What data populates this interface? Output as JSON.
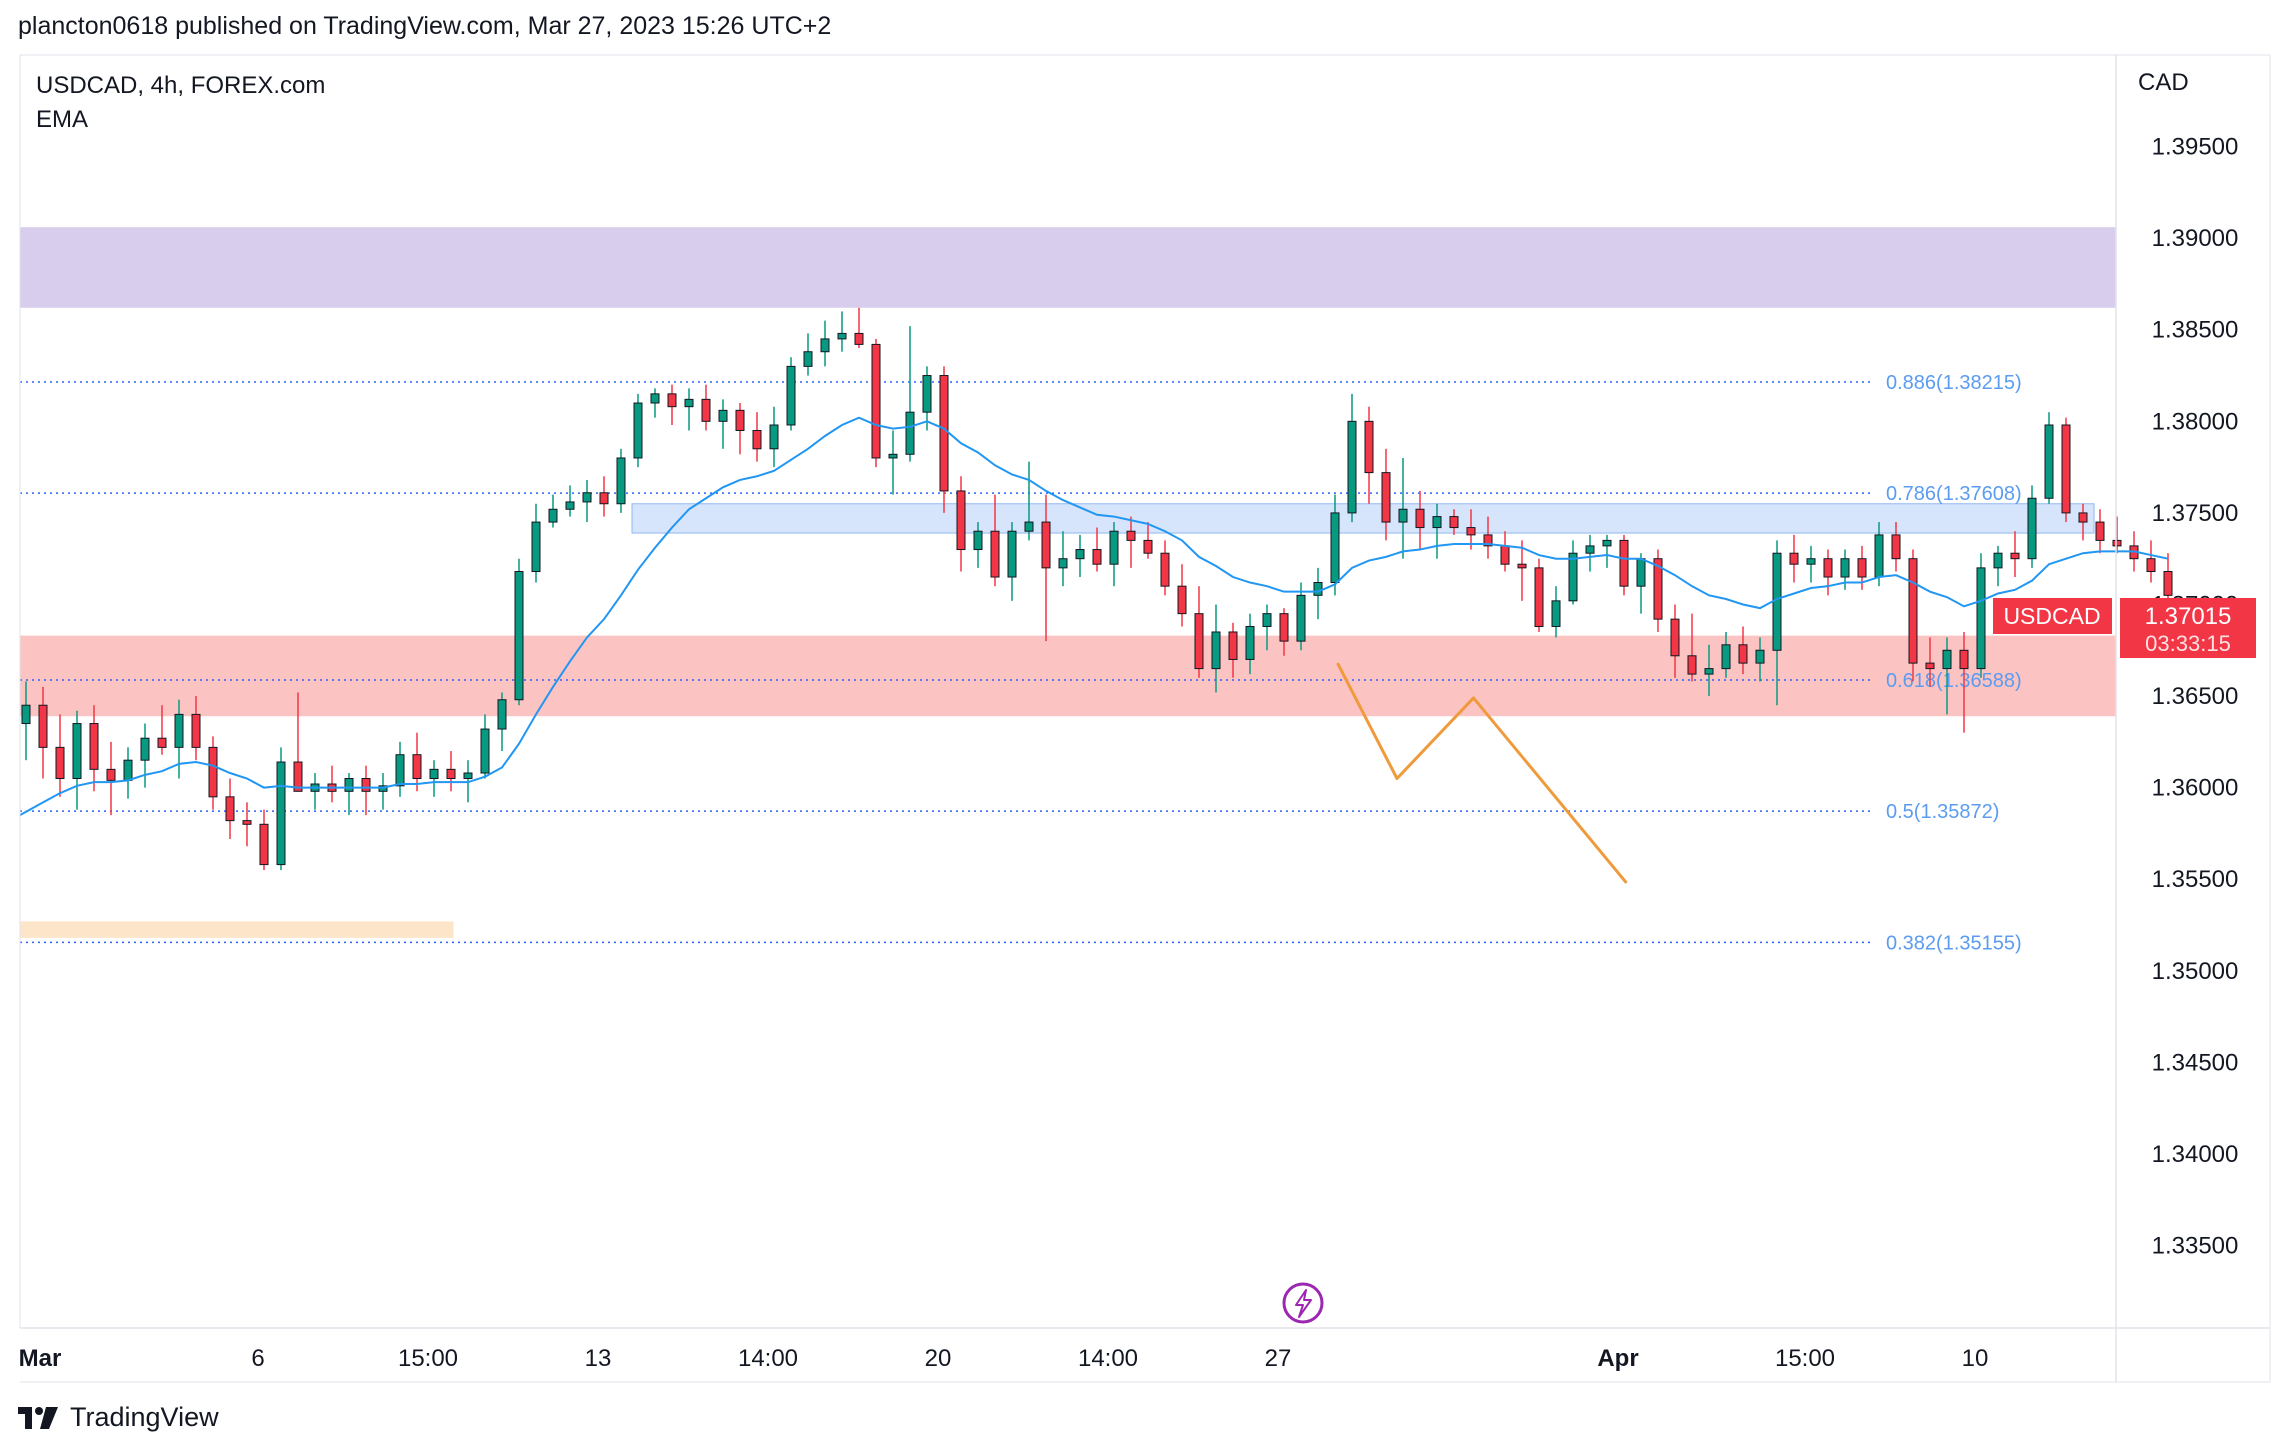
{
  "header": {
    "published": "plancton0618 published on TradingView.com, Mar 27, 2023 15:26 UTC+2"
  },
  "footer": {
    "brand": "TradingView"
  },
  "chart_data": {
    "type": "candlestick",
    "symbol_line": "USDCAD, 4h, FOREX.com",
    "indicator": "EMA",
    "currency": "CAD",
    "ylim": [
      1.3305,
      1.4
    ],
    "y_ticks": [
      "1.39500",
      "1.39000",
      "1.38500",
      "1.38000",
      "1.37500",
      "1.37000",
      "1.36500",
      "1.36000",
      "1.35500",
      "1.35000",
      "1.34500",
      "1.34000",
      "1.33500"
    ],
    "y_tick_values": [
      1.395,
      1.39,
      1.385,
      1.38,
      1.375,
      1.37,
      1.365,
      1.36,
      1.355,
      1.35,
      1.345,
      1.34,
      1.335
    ],
    "x_slots": 128,
    "x_ticks": [
      {
        "label": "Mar",
        "slot": 0,
        "bold": true
      },
      {
        "label": "6",
        "slot": 14,
        "bold": false
      },
      {
        "label": "15:00",
        "slot": 24,
        "bold": false
      },
      {
        "label": "13",
        "slot": 34,
        "bold": false
      },
      {
        "label": "14:00",
        "slot": 44,
        "bold": false
      },
      {
        "label": "20",
        "slot": 54,
        "bold": false
      },
      {
        "label": "14:00",
        "slot": 64,
        "bold": false
      },
      {
        "label": "27",
        "slot": 74,
        "bold": false
      },
      {
        "label": "Apr",
        "slot": 94,
        "bold": true
      },
      {
        "label": "15:00",
        "slot": 105,
        "bold": false
      },
      {
        "label": "10",
        "slot": 115,
        "bold": false
      }
    ],
    "current_price": {
      "label": "USDCAD",
      "value": "1.37015",
      "countdown": "03:33:15",
      "price": 1.37015
    },
    "zones": [
      {
        "name": "supply-zone",
        "y_top": 1.3906,
        "y_bottom": 1.3862,
        "slot_start": 0,
        "slot_end": 128,
        "color": "#d1c4e9"
      },
      {
        "name": "resistance-zone",
        "y_top": 1.3755,
        "y_bottom": 1.3739,
        "slot_start": 36,
        "slot_end": 122,
        "color": "#cfe0fa"
      },
      {
        "name": "demand-zone",
        "y_top": 1.3683,
        "y_bottom": 1.3639,
        "slot_start": 0,
        "slot_end": 128,
        "color": "#fcb9b9"
      },
      {
        "name": "target-zone",
        "y_top": 1.3527,
        "y_bottom": 1.3518,
        "slot_start": 0,
        "slot_end": 25.5,
        "color": "#fde0c0"
      }
    ],
    "fib_levels": [
      {
        "label": "0.886(1.38215)",
        "price": 1.38215
      },
      {
        "label": "0.786(1.37608)",
        "price": 1.37608
      },
      {
        "label": "0.618(1.36588)",
        "price": 1.36588
      },
      {
        "label": "0.5(1.35872)",
        "price": 1.35872
      },
      {
        "label": "0.382(1.35155)",
        "price": 1.35155
      }
    ],
    "projection_path": [
      [
        77.5,
        1.3668
      ],
      [
        81,
        1.3605
      ],
      [
        85.5,
        1.3649
      ],
      [
        94.5,
        1.3548
      ]
    ],
    "candles": [
      [
        1.3635,
        1.3658,
        1.3615,
        1.3645
      ],
      [
        1.3645,
        1.3655,
        1.3605,
        1.3622
      ],
      [
        1.3622,
        1.364,
        1.3595,
        1.3605
      ],
      [
        1.3605,
        1.3642,
        1.3588,
        1.3635
      ],
      [
        1.3635,
        1.3645,
        1.3598,
        1.361
      ],
      [
        1.361,
        1.3625,
        1.3585,
        1.3604
      ],
      [
        1.3604,
        1.3622,
        1.3594,
        1.3615
      ],
      [
        1.3615,
        1.3635,
        1.36,
        1.3627
      ],
      [
        1.3627,
        1.3645,
        1.3618,
        1.3622
      ],
      [
        1.3622,
        1.3648,
        1.3605,
        1.364
      ],
      [
        1.364,
        1.365,
        1.3615,
        1.3622
      ],
      [
        1.3622,
        1.3628,
        1.3588,
        1.3595
      ],
      [
        1.3595,
        1.3605,
        1.3572,
        1.3582
      ],
      [
        1.3582,
        1.3592,
        1.3568,
        1.358
      ],
      [
        1.358,
        1.3588,
        1.3555,
        1.3558
      ],
      [
        1.3558,
        1.3622,
        1.3555,
        1.3614
      ],
      [
        1.3614,
        1.3652,
        1.36,
        1.3598
      ],
      [
        1.3598,
        1.3608,
        1.3588,
        1.3602
      ],
      [
        1.3602,
        1.3612,
        1.3592,
        1.3598
      ],
      [
        1.3598,
        1.3608,
        1.3585,
        1.3605
      ],
      [
        1.3605,
        1.3612,
        1.3585,
        1.3598
      ],
      [
        1.3598,
        1.3608,
        1.3588,
        1.3601
      ],
      [
        1.3601,
        1.3625,
        1.3595,
        1.3618
      ],
      [
        1.3618,
        1.363,
        1.3598,
        1.3605
      ],
      [
        1.3605,
        1.3615,
        1.3595,
        1.361
      ],
      [
        1.361,
        1.362,
        1.3598,
        1.3605
      ],
      [
        1.3605,
        1.3615,
        1.3592,
        1.3608
      ],
      [
        1.3608,
        1.364,
        1.3605,
        1.3632
      ],
      [
        1.3632,
        1.3652,
        1.362,
        1.3648
      ],
      [
        1.3648,
        1.3725,
        1.3645,
        1.3718
      ],
      [
        1.3718,
        1.3755,
        1.3712,
        1.3745
      ],
      [
        1.3745,
        1.376,
        1.3742,
        1.3752
      ],
      [
        1.3752,
        1.3765,
        1.3748,
        1.3756
      ],
      [
        1.3756,
        1.3768,
        1.3745,
        1.3761
      ],
      [
        1.3761,
        1.377,
        1.3748,
        1.3755
      ],
      [
        1.3755,
        1.3785,
        1.375,
        1.378
      ],
      [
        1.378,
        1.3815,
        1.3775,
        1.381
      ],
      [
        1.381,
        1.3818,
        1.3802,
        1.3815
      ],
      [
        1.3815,
        1.382,
        1.3798,
        1.3808
      ],
      [
        1.3808,
        1.3818,
        1.3795,
        1.3812
      ],
      [
        1.3812,
        1.382,
        1.3795,
        1.38
      ],
      [
        1.38,
        1.3812,
        1.3785,
        1.3806
      ],
      [
        1.3806,
        1.381,
        1.3782,
        1.3795
      ],
      [
        1.3795,
        1.3805,
        1.3778,
        1.3785
      ],
      [
        1.3785,
        1.3808,
        1.3775,
        1.3798
      ],
      [
        1.3798,
        1.3835,
        1.3795,
        1.383
      ],
      [
        1.383,
        1.3848,
        1.3825,
        1.3838
      ],
      [
        1.3838,
        1.3855,
        1.383,
        1.3845
      ],
      [
        1.3845,
        1.386,
        1.3838,
        1.3848
      ],
      [
        1.3848,
        1.3862,
        1.384,
        1.3842
      ],
      [
        1.3842,
        1.3845,
        1.3775,
        1.378
      ],
      [
        1.378,
        1.3795,
        1.376,
        1.3782
      ],
      [
        1.3782,
        1.3852,
        1.3778,
        1.3805
      ],
      [
        1.3805,
        1.383,
        1.3795,
        1.3825
      ],
      [
        1.3825,
        1.383,
        1.375,
        1.3762
      ],
      [
        1.3762,
        1.377,
        1.3718,
        1.373
      ],
      [
        1.373,
        1.3745,
        1.372,
        1.374
      ],
      [
        1.374,
        1.376,
        1.371,
        1.3715
      ],
      [
        1.3715,
        1.3745,
        1.3702,
        1.374
      ],
      [
        1.374,
        1.3778,
        1.3735,
        1.3745
      ],
      [
        1.3745,
        1.376,
        1.368,
        1.372
      ],
      [
        1.372,
        1.374,
        1.371,
        1.3725
      ],
      [
        1.3725,
        1.3738,
        1.3715,
        1.373
      ],
      [
        1.373,
        1.3742,
        1.3718,
        1.3722
      ],
      [
        1.3722,
        1.3745,
        1.371,
        1.374
      ],
      [
        1.374,
        1.3748,
        1.372,
        1.3735
      ],
      [
        1.3735,
        1.3745,
        1.3725,
        1.3728
      ],
      [
        1.3728,
        1.3735,
        1.3705,
        1.371
      ],
      [
        1.371,
        1.3722,
        1.3688,
        1.3695
      ],
      [
        1.3695,
        1.371,
        1.366,
        1.3665
      ],
      [
        1.3665,
        1.37,
        1.3652,
        1.3685
      ],
      [
        1.3685,
        1.369,
        1.366,
        1.367
      ],
      [
        1.367,
        1.3695,
        1.3662,
        1.3688
      ],
      [
        1.3688,
        1.37,
        1.3675,
        1.3695
      ],
      [
        1.3695,
        1.3698,
        1.3672,
        1.368
      ],
      [
        1.368,
        1.3712,
        1.3675,
        1.3705
      ],
      [
        1.3705,
        1.372,
        1.3692,
        1.3712
      ],
      [
        1.3712,
        1.376,
        1.3705,
        1.375
      ],
      [
        1.375,
        1.3815,
        1.3745,
        1.38
      ],
      [
        1.38,
        1.3808,
        1.3755,
        1.3772
      ],
      [
        1.3772,
        1.3785,
        1.3735,
        1.3745
      ],
      [
        1.3745,
        1.378,
        1.3725,
        1.3752
      ],
      [
        1.3752,
        1.3762,
        1.373,
        1.3742
      ],
      [
        1.3742,
        1.3755,
        1.3725,
        1.3748
      ],
      [
        1.3748,
        1.3752,
        1.3738,
        1.3742
      ],
      [
        1.3742,
        1.3752,
        1.373,
        1.3738
      ],
      [
        1.3738,
        1.3748,
        1.3725,
        1.3732
      ],
      [
        1.3732,
        1.374,
        1.3718,
        1.3722
      ],
      [
        1.3722,
        1.3735,
        1.3702,
        1.372
      ],
      [
        1.372,
        1.3725,
        1.3685,
        1.3688
      ],
      [
        1.3688,
        1.371,
        1.3682,
        1.3702
      ],
      [
        1.3702,
        1.3735,
        1.37,
        1.3728
      ],
      [
        1.3728,
        1.3738,
        1.3718,
        1.3732
      ],
      [
        1.3732,
        1.3738,
        1.372,
        1.3735
      ],
      [
        1.3735,
        1.3738,
        1.3705,
        1.371
      ],
      [
        1.371,
        1.3728,
        1.3695,
        1.3725
      ],
      [
        1.3725,
        1.373,
        1.3685,
        1.3692
      ],
      [
        1.3692,
        1.37,
        1.366,
        1.3672
      ],
      [
        1.3672,
        1.3695,
        1.3658,
        1.3662
      ],
      [
        1.3662,
        1.3678,
        1.365,
        1.3665
      ],
      [
        1.3665,
        1.3685,
        1.366,
        1.3678
      ],
      [
        1.3678,
        1.3688,
        1.3662,
        1.3668
      ],
      [
        1.3668,
        1.3682,
        1.3658,
        1.3675
      ],
      [
        1.3675,
        1.3735,
        1.3645,
        1.3728
      ],
      [
        1.3728,
        1.3738,
        1.3712,
        1.3722
      ],
      [
        1.3722,
        1.3732,
        1.3712,
        1.3725
      ],
      [
        1.3725,
        1.373,
        1.3705,
        1.3715
      ],
      [
        1.3715,
        1.373,
        1.3708,
        1.3725
      ],
      [
        1.3725,
        1.3732,
        1.3708,
        1.3715
      ],
      [
        1.3715,
        1.3745,
        1.371,
        1.3738
      ],
      [
        1.3738,
        1.3745,
        1.3718,
        1.3725
      ],
      [
        1.3725,
        1.373,
        1.3658,
        1.3668
      ],
      [
        1.3668,
        1.3682,
        1.3655,
        1.3665
      ],
      [
        1.3665,
        1.3682,
        1.364,
        1.3675
      ],
      [
        1.3675,
        1.3685,
        1.363,
        1.3665
      ],
      [
        1.3665,
        1.3728,
        1.366,
        1.372
      ],
      [
        1.372,
        1.3732,
        1.371,
        1.3728
      ],
      [
        1.3728,
        1.374,
        1.3715,
        1.3725
      ],
      [
        1.3725,
        1.3765,
        1.372,
        1.3758
      ],
      [
        1.3758,
        1.3805,
        1.3755,
        1.3798
      ],
      [
        1.3798,
        1.3802,
        1.3745,
        1.375
      ],
      [
        1.375,
        1.3755,
        1.3735,
        1.3745
      ],
      [
        1.3745,
        1.3752,
        1.3728,
        1.3735
      ],
      [
        1.3735,
        1.3748,
        1.3728,
        1.3732
      ],
      [
        1.3732,
        1.374,
        1.3718,
        1.3725
      ],
      [
        1.3725,
        1.3735,
        1.3712,
        1.3718
      ],
      [
        1.3718,
        1.3728,
        1.37,
        1.3705
      ]
    ],
    "ema": [
      1.3585,
      1.3592,
      1.3597,
      1.3601,
      1.3603,
      1.3603,
      1.3604,
      1.3607,
      1.3609,
      1.3613,
      1.3614,
      1.3612,
      1.3608,
      1.3605,
      1.36,
      1.3601,
      1.36,
      1.36,
      1.36,
      1.36,
      1.36,
      1.36,
      1.3602,
      1.3602,
      1.3603,
      1.3603,
      1.3603,
      1.3606,
      1.3611,
      1.3624,
      1.364,
      1.3655,
      1.3669,
      1.3682,
      1.3692,
      1.3705,
      1.3719,
      1.3731,
      1.3742,
      1.3752,
      1.3758,
      1.3764,
      1.3768,
      1.377,
      1.3773,
      1.3779,
      1.3785,
      1.3792,
      1.3798,
      1.3802,
      1.3798,
      1.3796,
      1.3797,
      1.38,
      1.3796,
      1.3788,
      1.3783,
      1.3776,
      1.3771,
      1.3768,
      1.3762,
      1.3757,
      1.3753,
      1.3749,
      1.3748,
      1.3746,
      1.3744,
      1.374,
      1.3735,
      1.3726,
      1.3721,
      1.3715,
      1.3712,
      1.371,
      1.3707,
      1.3707,
      1.3707,
      1.3711,
      1.372,
      1.3724,
      1.3726,
      1.3729,
      1.373,
      1.3732,
      1.3733,
      1.3733,
      1.3733,
      1.3732,
      1.3731,
      1.3727,
      1.3725,
      1.3725,
      1.3726,
      1.3727,
      1.3725,
      1.3725,
      1.3721,
      1.3716,
      1.371,
      1.3705,
      1.3703,
      1.37,
      1.3698,
      1.3703,
      1.3706,
      1.3709,
      1.371,
      1.3712,
      1.3712,
      1.3715,
      1.3716,
      1.3712,
      1.3707,
      1.3704,
      1.3699,
      1.3702,
      1.3706,
      1.3708,
      1.3713,
      1.3722,
      1.3725,
      1.3728,
      1.3729,
      1.3729,
      1.3729,
      1.3727,
      1.3725
    ]
  }
}
